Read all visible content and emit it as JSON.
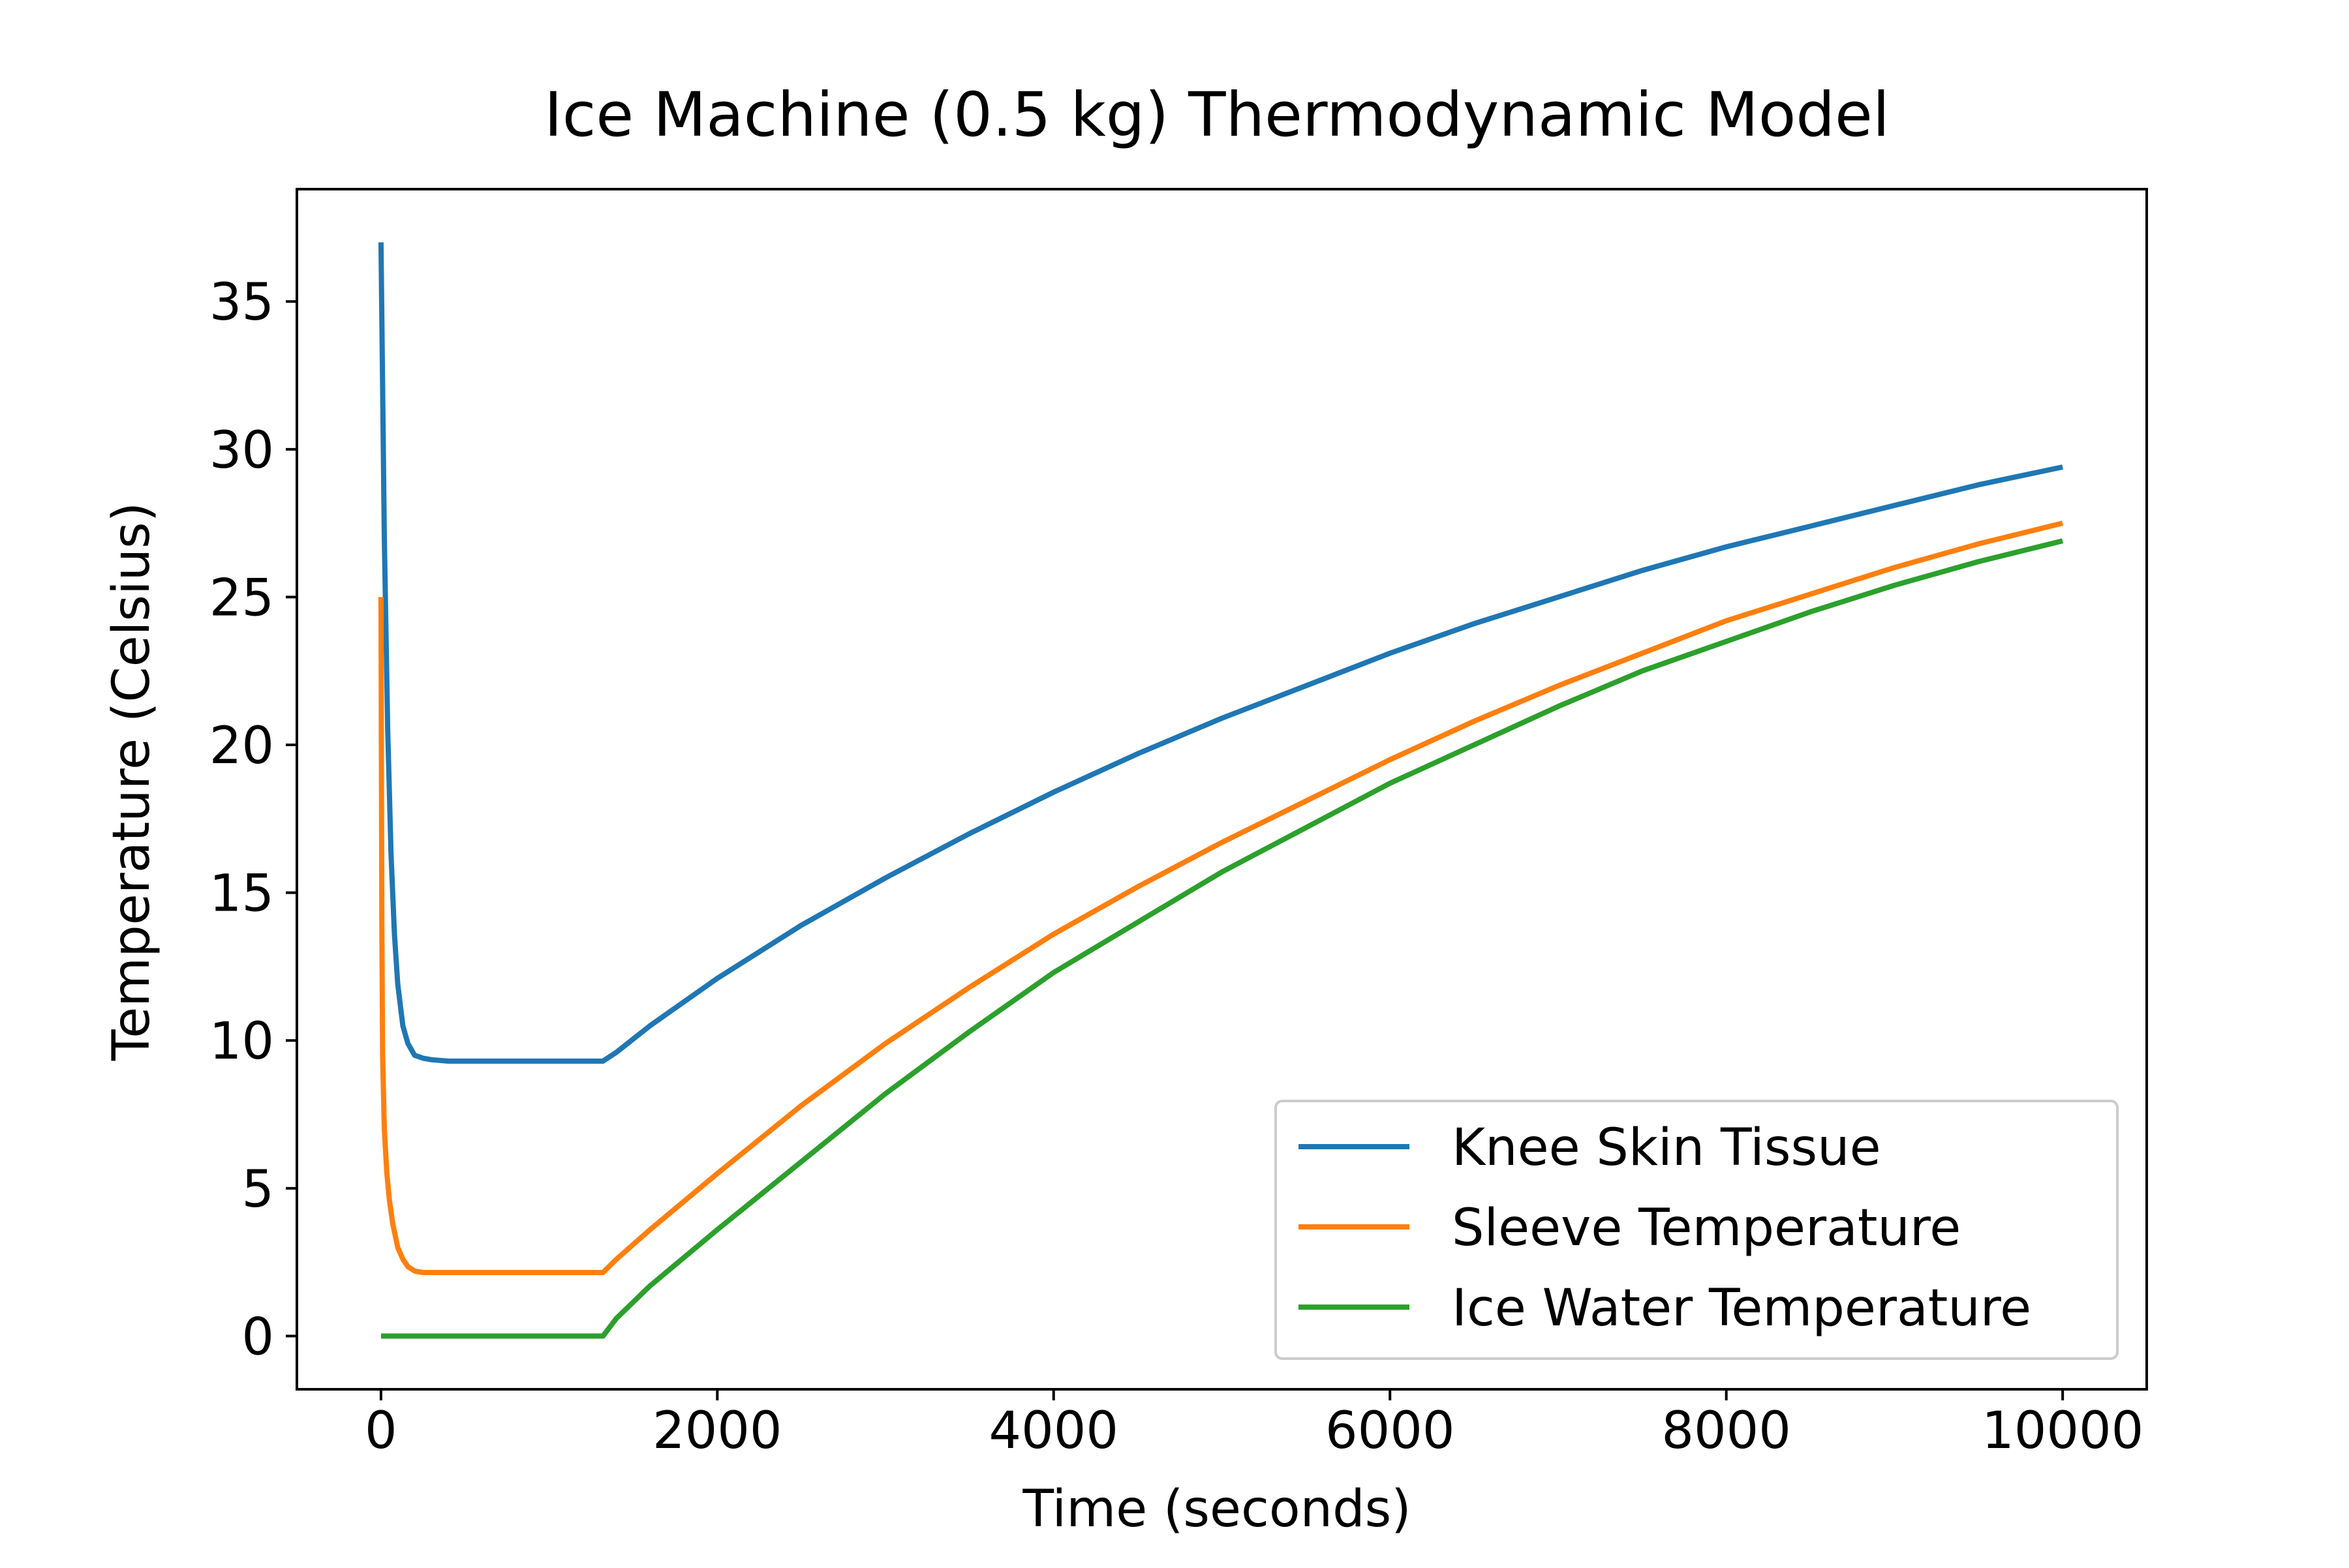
{
  "chart_data": {
    "type": "line",
    "title": "Ice Machine (0.5 kg) Thermodynamic Model",
    "xlabel": "Time (seconds)",
    "ylabel": "Temperature (Celsius)",
    "xlim": [
      -500,
      10500
    ],
    "ylim": [
      -1.8,
      38.8
    ],
    "xticks": [
      0,
      2000,
      4000,
      6000,
      8000,
      10000
    ],
    "xtick_labels": [
      "0",
      "2000",
      "4000",
      "6000",
      "8000",
      "10000"
    ],
    "yticks": [
      0,
      5,
      10,
      15,
      20,
      25,
      30,
      35
    ],
    "ytick_labels": [
      "0",
      "5",
      "10",
      "15",
      "20",
      "25",
      "30",
      "35"
    ],
    "grid": false,
    "legend_position": "lower-right",
    "series": [
      {
        "name": "Knee Skin Tissue",
        "color": "#1f77b4",
        "x": [
          0,
          20,
          40,
          60,
          80,
          100,
          130,
          160,
          200,
          250,
          300,
          400,
          600,
          800,
          1000,
          1200,
          1320,
          1400,
          1600,
          2000,
          2500,
          3000,
          3500,
          4000,
          4500,
          5000,
          5500,
          6000,
          6500,
          7000,
          7500,
          8000,
          8500,
          9000,
          9500,
          10000
        ],
        "values": [
          37.0,
          27.0,
          20.5,
          16.3,
          13.6,
          11.9,
          10.5,
          9.9,
          9.5,
          9.4,
          9.35,
          9.3,
          9.3,
          9.3,
          9.3,
          9.3,
          9.3,
          9.6,
          10.5,
          12.1,
          13.9,
          15.5,
          17.0,
          18.4,
          19.7,
          20.9,
          22.0,
          23.1,
          24.1,
          25.0,
          25.9,
          26.7,
          27.4,
          28.1,
          28.8,
          29.4
        ]
      },
      {
        "name": "Sleeve Temperature",
        "color": "#ff7f0e",
        "x": [
          0,
          5,
          10,
          20,
          35,
          50,
          70,
          100,
          130,
          160,
          200,
          250,
          300,
          400,
          600,
          800,
          1000,
          1200,
          1320,
          1400,
          1600,
          2000,
          2500,
          3000,
          3500,
          4000,
          4500,
          5000,
          5500,
          6000,
          6500,
          7000,
          7500,
          8000,
          8500,
          9000,
          9500,
          10000
        ],
        "values": [
          25.0,
          14.0,
          9.5,
          7.0,
          5.5,
          4.6,
          3.8,
          3.0,
          2.6,
          2.35,
          2.2,
          2.15,
          2.15,
          2.15,
          2.15,
          2.15,
          2.15,
          2.15,
          2.15,
          2.6,
          3.6,
          5.5,
          7.8,
          9.9,
          11.8,
          13.6,
          15.2,
          16.7,
          18.1,
          19.5,
          20.8,
          22.0,
          23.1,
          24.2,
          25.1,
          26.0,
          26.8,
          27.5
        ]
      },
      {
        "name": "Ice Water Temperature",
        "color": "#2ca02c",
        "x": [
          0,
          200,
          400,
          600,
          800,
          1000,
          1200,
          1320,
          1400,
          1600,
          2000,
          2500,
          3000,
          3500,
          4000,
          4500,
          5000,
          5500,
          6000,
          6500,
          7000,
          7500,
          8000,
          8500,
          9000,
          9500,
          10000
        ],
        "values": [
          0.0,
          0.0,
          0.0,
          0.0,
          0.0,
          0.0,
          0.0,
          0.0,
          0.6,
          1.7,
          3.6,
          5.9,
          8.2,
          10.3,
          12.3,
          14.0,
          15.7,
          17.2,
          18.7,
          20.0,
          21.3,
          22.5,
          23.5,
          24.5,
          25.4,
          26.2,
          26.9
        ]
      }
    ]
  }
}
